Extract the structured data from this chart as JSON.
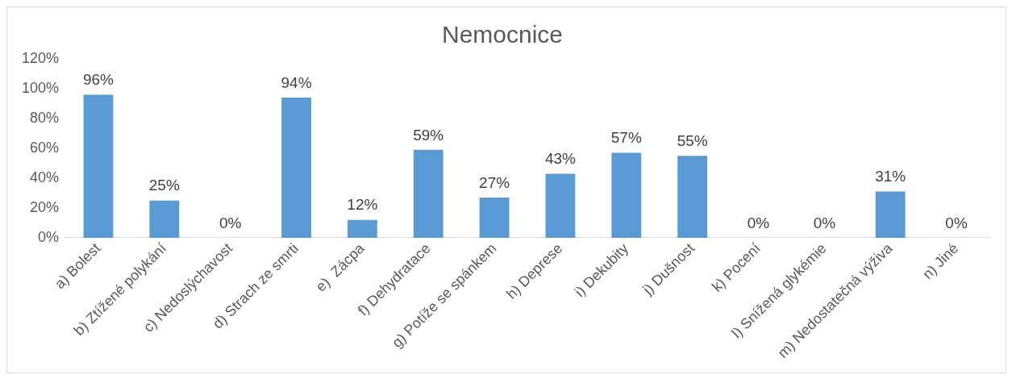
{
  "chart_data": {
    "type": "bar",
    "title": "Nemocnice",
    "categories": [
      "a) Bolest",
      "b) Ztížené polykání",
      "c) Nedoslýchavost",
      "d) Strach ze smrti",
      "e)  Zácpa",
      "f) Dehydratace",
      "g) Potíže se spánkem",
      "h) Deprese",
      "i) Dekubity",
      "j) Dušnost",
      "k) Pocení",
      "l) Snížená glykémie",
      "m) Nedostatečná výživa",
      "n) Jiné"
    ],
    "values": [
      96,
      25,
      0,
      94,
      12,
      59,
      27,
      43,
      57,
      55,
      0,
      0,
      31,
      0
    ],
    "value_labels": [
      "96%",
      "25%",
      "0%",
      "94%",
      "12%",
      "59%",
      "27%",
      "43%",
      "57%",
      "55%",
      "0%",
      "0%",
      "31%",
      "0%"
    ],
    "color": "#5b9bd5",
    "ylim": [
      0,
      120
    ],
    "yticks": [
      {
        "value": 0,
        "label": "0%"
      },
      {
        "value": 20,
        "label": "20%"
      },
      {
        "value": 40,
        "label": "40%"
      },
      {
        "value": 60,
        "label": "60%"
      },
      {
        "value": 80,
        "label": "80%"
      },
      {
        "value": 100,
        "label": "100%"
      },
      {
        "value": 120,
        "label": "120%"
      }
    ],
    "grid": false,
    "legend": false
  }
}
